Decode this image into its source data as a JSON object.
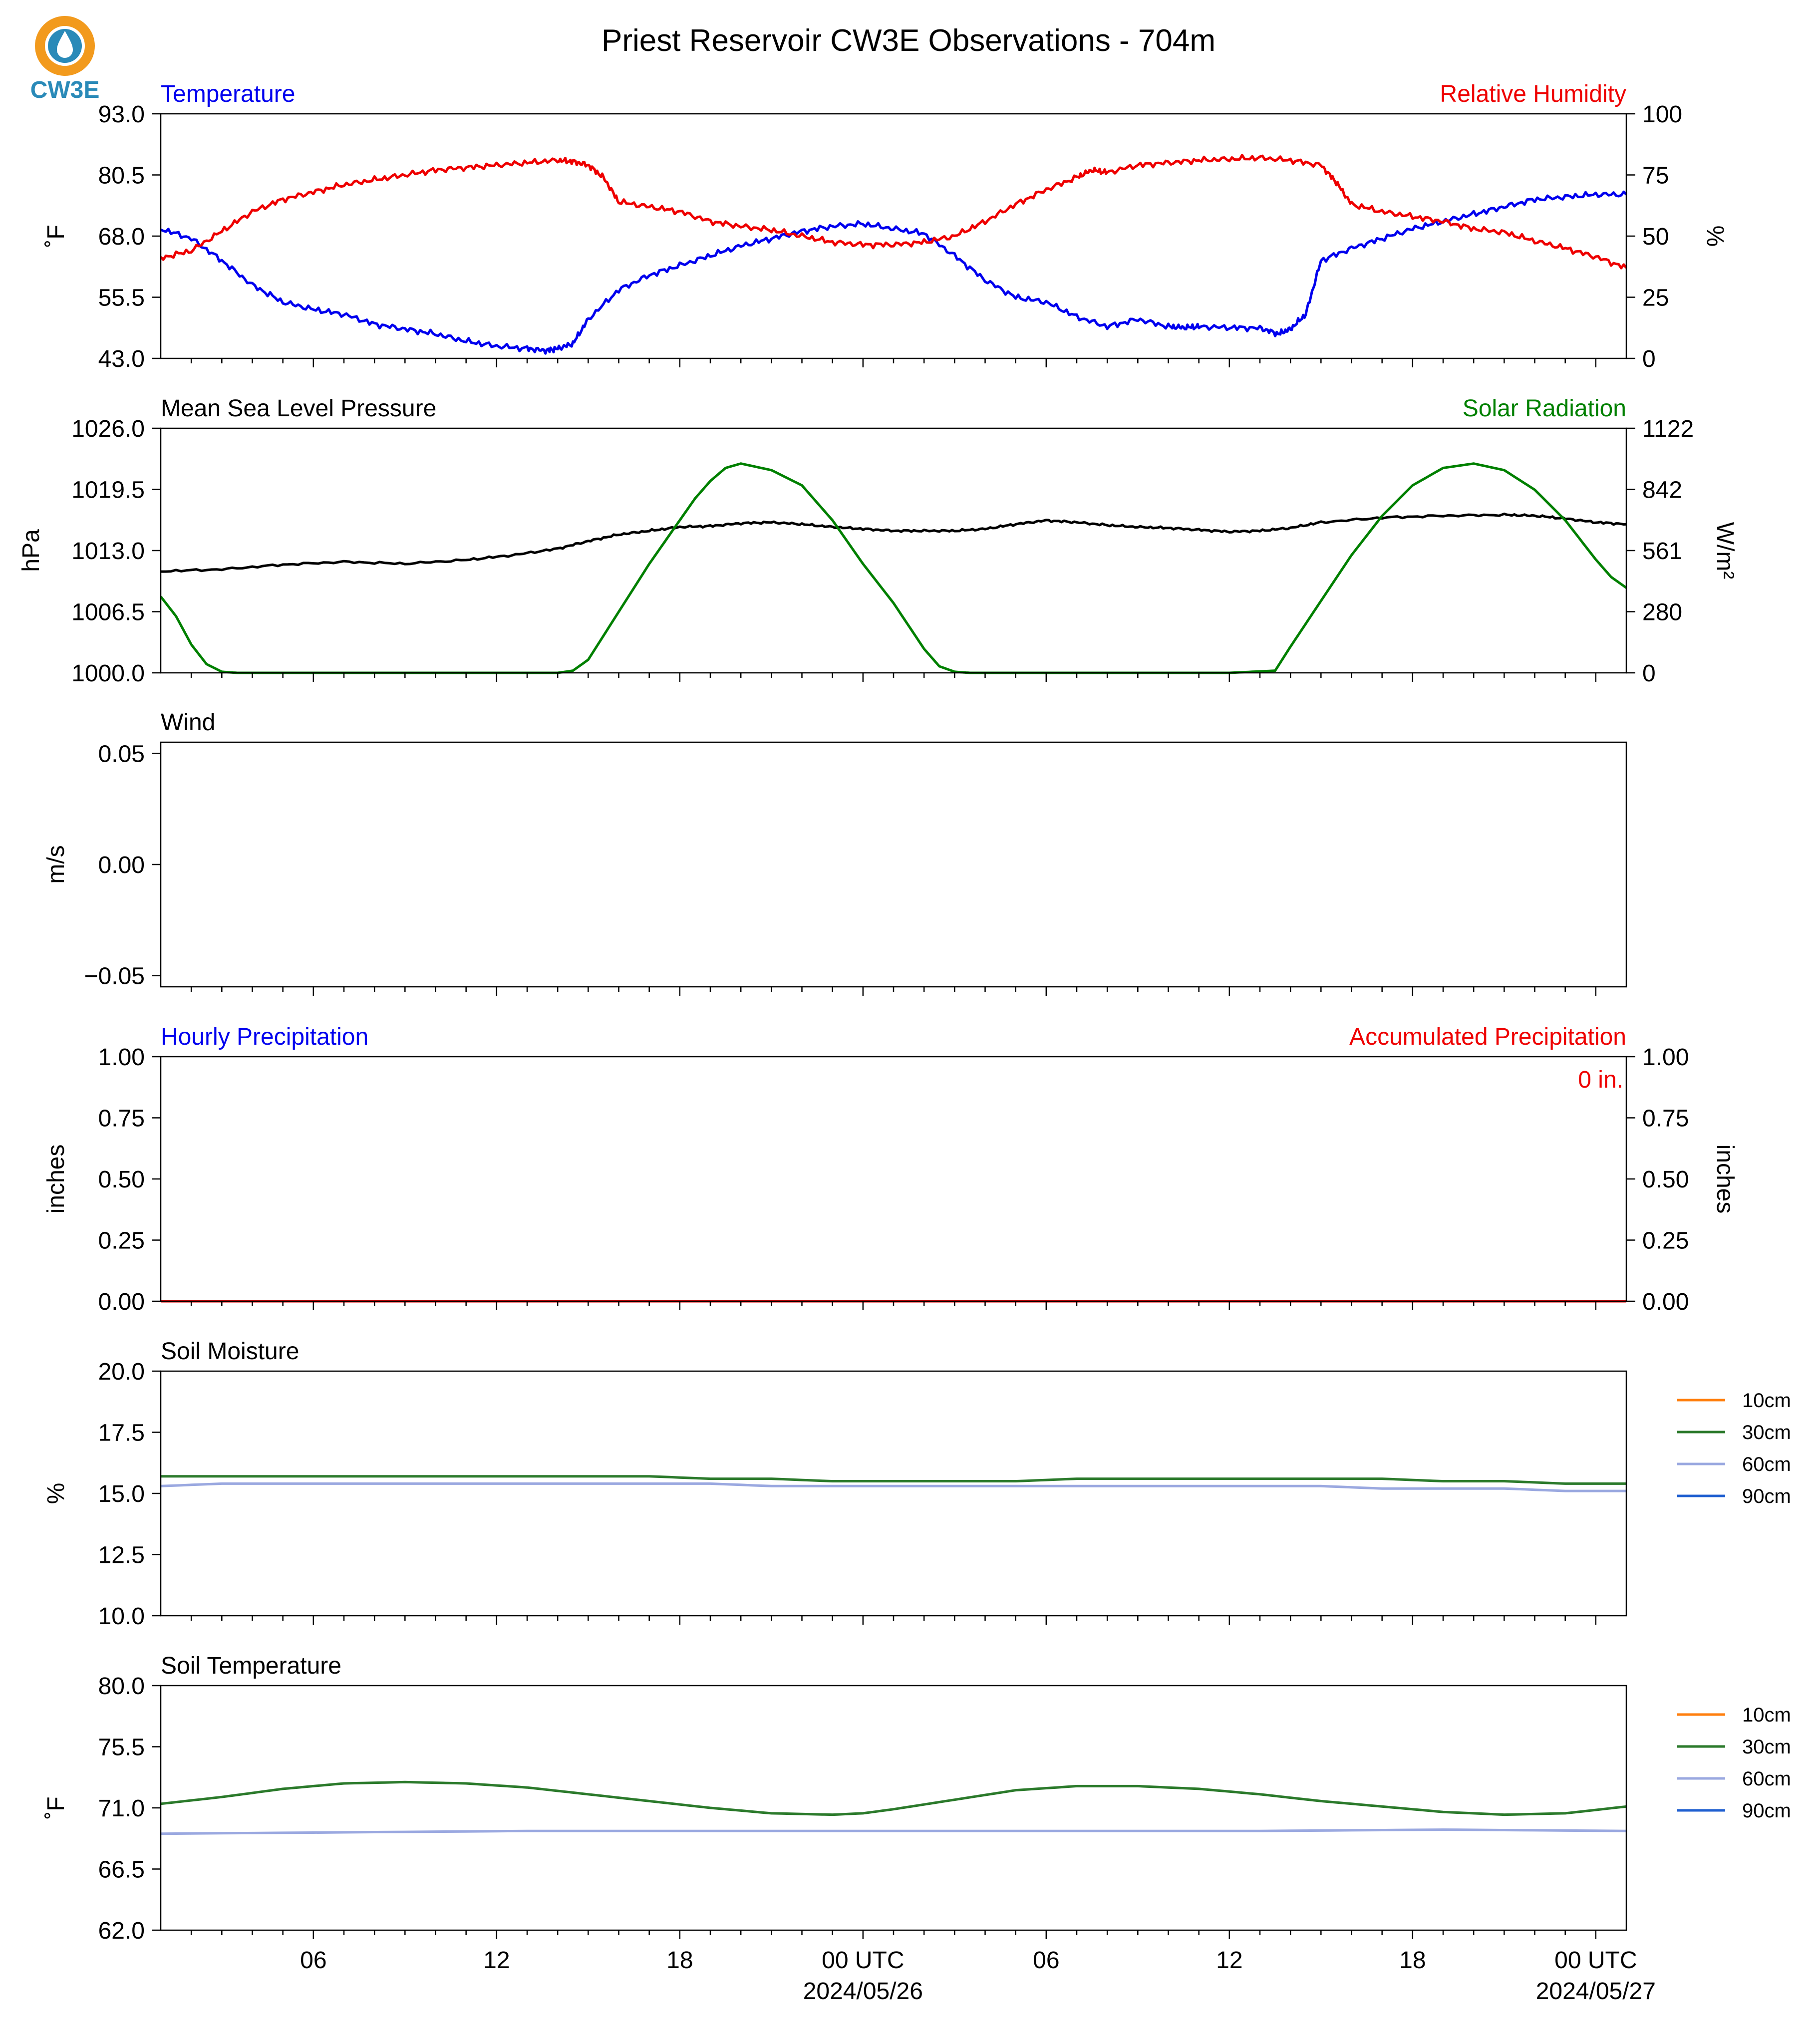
{
  "title": "Priest Reservoir CW3E Observations - 704m",
  "logo": {
    "text": "CW3E",
    "colors": {
      "ring": "#f29a1d",
      "drop": "#2a8ab8",
      "text": "#2a8ab8"
    }
  },
  "colors": {
    "blue": "#0000ee",
    "red": "#ee0000",
    "green": "#008000",
    "black": "#000000",
    "orange": "#ff7f0e",
    "soil30": "#2b7a2b",
    "soil60": "#9aa8e0",
    "soil90": "#1f5fd0"
  },
  "x_axis": {
    "start_hour": 0,
    "end_hour": 48,
    "tick_hours": [
      5,
      11,
      17,
      23,
      29,
      35,
      41,
      47
    ],
    "tick_labels": [
      "06",
      "12",
      "18",
      "00 UTC",
      "06",
      "12",
      "18",
      "00 UTC"
    ],
    "date_labels": [
      {
        "hour": 23,
        "text": "2024/05/26"
      },
      {
        "hour": 47,
        "text": "2024/05/27"
      }
    ]
  },
  "chart_data": [
    {
      "type": "line",
      "panel": "temperature_humidity",
      "title_left": "Temperature",
      "title_right": "Relative Humidity",
      "ylabel_left": "˚F",
      "ylabel_right": "%",
      "ylim_left": [
        43,
        93
      ],
      "yticks_left": [
        "93.0",
        "80.5",
        "68.0",
        "55.5",
        "43.0"
      ],
      "ylim_right": [
        0,
        100
      ],
      "yticks_right": [
        "100",
        "75",
        "50",
        "25",
        "0"
      ],
      "series": [
        {
          "name": "Temperature",
          "axis": "left",
          "color": "#0000ee",
          "x": [
            0,
            1,
            2,
            3,
            4,
            5,
            6,
            7,
            8,
            9,
            10,
            11,
            12,
            12.6,
            13,
            13.5,
            14,
            15,
            16,
            17,
            18,
            19,
            20,
            21,
            22,
            23,
            24,
            25,
            26,
            27,
            28,
            29,
            30,
            31,
            32,
            33,
            33.5,
            34,
            35,
            36,
            36.6,
            37,
            37.5,
            38,
            39,
            40,
            41,
            42,
            43,
            44,
            45,
            46,
            47,
            48
          ],
          "y": [
            69.5,
            67.5,
            63,
            58,
            54.5,
            53,
            52,
            50,
            49,
            48,
            46.5,
            45.5,
            45,
            44.6,
            45,
            46,
            51,
            57,
            60,
            62,
            64,
            66,
            67.5,
            69,
            70,
            70.5,
            69.5,
            68.5,
            64,
            59,
            55.5,
            54.5,
            51.5,
            49.5,
            51,
            49.5,
            49.3,
            49.5,
            49.3,
            49.2,
            48,
            49,
            52,
            63,
            65.5,
            67.5,
            69.5,
            71,
            72.5,
            74,
            75.5,
            76,
            76.5,
            76.5
          ]
        },
        {
          "name": "Relative Humidity",
          "axis": "right",
          "color": "#ee0000",
          "x": [
            0,
            1,
            2,
            3,
            4,
            5,
            6,
            7,
            8,
            9,
            10,
            11,
            12,
            13,
            13.5,
            14,
            14.5,
            15,
            16,
            17,
            18,
            19,
            20,
            21,
            22,
            23,
            24,
            25,
            26,
            27,
            28,
            29,
            30,
            30.5,
            31,
            32,
            33,
            34,
            35,
            36,
            37,
            38,
            38.5,
            39,
            40,
            41,
            42,
            43,
            44,
            45,
            46,
            47,
            48
          ],
          "y": [
            41,
            44,
            52,
            60,
            65,
            68,
            71,
            73,
            75,
            77,
            78,
            79,
            80,
            81,
            80.5,
            79,
            74,
            64,
            62,
            60,
            56,
            54,
            52.5,
            50,
            47.5,
            46.5,
            46.5,
            47.5,
            50,
            56,
            63,
            69,
            74,
            77,
            76,
            79,
            80,
            81,
            81.5,
            82,
            81,
            79,
            72,
            63,
            60,
            58,
            56,
            53,
            51.5,
            48,
            45,
            41.5,
            37
          ]
        }
      ]
    },
    {
      "type": "line",
      "panel": "pressure_solar",
      "title_left": "Mean Sea Level Pressure",
      "title_right": "Solar Radiation",
      "ylabel_left": "hPa",
      "ylabel_right": "W/m²",
      "ylim_left": [
        1000,
        1026
      ],
      "yticks_left": [
        "1026.0",
        "1019.5",
        "1013.0",
        "1006.5",
        "1000.0"
      ],
      "ylim_right": [
        0,
        1122
      ],
      "yticks_right": [
        "1122",
        "842",
        "561",
        "280",
        "0"
      ],
      "series": [
        {
          "name": "Mean Sea Level Pressure",
          "axis": "left",
          "color": "#000000",
          "x": [
            0,
            2,
            4,
            6,
            8,
            10,
            11.5,
            13,
            14,
            15,
            16,
            17,
            18,
            19,
            20,
            21,
            22,
            23,
            24,
            25,
            26,
            27,
            28,
            29,
            30,
            31,
            32,
            33,
            34,
            35,
            36,
            37,
            38,
            40,
            42,
            44,
            45,
            46,
            47,
            48
          ],
          "y": [
            1010.8,
            1011.0,
            1011.5,
            1011.8,
            1011.6,
            1012.0,
            1012.5,
            1013.2,
            1014.0,
            1014.7,
            1015.1,
            1015.5,
            1015.6,
            1015.9,
            1016.0,
            1015.8,
            1015.5,
            1015.3,
            1015.1,
            1015.1,
            1015.1,
            1015.3,
            1015.8,
            1016.2,
            1016.0,
            1015.7,
            1015.5,
            1015.4,
            1015.2,
            1015.0,
            1015.1,
            1015.4,
            1016.0,
            1016.5,
            1016.7,
            1016.8,
            1016.7,
            1016.4,
            1016.0,
            1015.8
          ]
        },
        {
          "name": "Solar Radiation",
          "axis": "right",
          "color": "#008000",
          "x": [
            0,
            0.5,
            1,
            1.5,
            2,
            2.5,
            3,
            6,
            9,
            12,
            13.0,
            13.5,
            14,
            15,
            16,
            17,
            17.5,
            18,
            18.5,
            19,
            20,
            21,
            22,
            23,
            24,
            25,
            25.5,
            26,
            26.5,
            27,
            30,
            33,
            35,
            36.5,
            37,
            38,
            39,
            40,
            41,
            42,
            43,
            44,
            45,
            46,
            47,
            47.5,
            48
          ],
          "y": [
            350,
            260,
            130,
            40,
            5,
            0,
            0,
            0,
            0,
            0,
            0,
            10,
            60,
            280,
            500,
            700,
            800,
            880,
            940,
            960,
            930,
            860,
            700,
            500,
            320,
            110,
            30,
            5,
            0,
            0,
            0,
            0,
            0,
            10,
            120,
            330,
            540,
            720,
            860,
            940,
            960,
            930,
            840,
            700,
            520,
            440,
            390
          ]
        }
      ]
    },
    {
      "type": "line",
      "panel": "wind",
      "title_left": "Wind",
      "ylabel_left": "m/s",
      "ylim_left": [
        -0.055,
        0.055
      ],
      "yticks_left": [
        "0.05",
        "0.00",
        "−0.05"
      ],
      "series": []
    },
    {
      "type": "line",
      "panel": "precipitation",
      "title_left": "Hourly Precipitation",
      "title_right": "Accumulated Precipitation",
      "ylabel_left": "inches",
      "ylabel_right": "inches",
      "ylim_left": [
        0,
        1
      ],
      "yticks_left": [
        "1.00",
        "0.75",
        "0.50",
        "0.25",
        "0.00"
      ],
      "ylim_right": [
        0,
        1
      ],
      "yticks_right": [
        "1.00",
        "0.75",
        "0.50",
        "0.25",
        "0.00"
      ],
      "annotation": "0 in.",
      "series": [
        {
          "name": "Hourly Precipitation",
          "axis": "left",
          "color": "#0000ee",
          "x": [
            0,
            48
          ],
          "y": [
            0,
            0
          ]
        },
        {
          "name": "Accumulated Precipitation",
          "axis": "right",
          "color": "#ee0000",
          "x": [
            0,
            48
          ],
          "y": [
            0,
            0
          ]
        }
      ]
    },
    {
      "type": "line",
      "panel": "soil_moisture",
      "title_left": "Soil Moisture",
      "ylabel_left": "%",
      "ylim_left": [
        10,
        20
      ],
      "yticks_left": [
        "20.0",
        "17.5",
        "15.0",
        "12.5",
        "10.0"
      ],
      "legend": [
        "10cm",
        "30cm",
        "60cm",
        "90cm"
      ],
      "series": [
        {
          "name": "30cm",
          "axis": "left",
          "color": "#2b7a2b",
          "x": [
            0,
            2,
            4,
            6,
            8,
            10,
            12,
            14,
            16,
            18,
            20,
            22,
            24,
            26,
            28,
            30,
            32,
            34,
            36,
            38,
            40,
            42,
            44,
            46,
            48
          ],
          "y": [
            15.7,
            15.7,
            15.7,
            15.7,
            15.7,
            15.7,
            15.7,
            15.7,
            15.7,
            15.6,
            15.6,
            15.5,
            15.5,
            15.5,
            15.5,
            15.6,
            15.6,
            15.6,
            15.6,
            15.6,
            15.6,
            15.5,
            15.5,
            15.4,
            15.4
          ]
        },
        {
          "name": "60cm",
          "axis": "left",
          "color": "#9aa8e0",
          "x": [
            0,
            2,
            4,
            6,
            8,
            10,
            12,
            14,
            16,
            18,
            20,
            22,
            24,
            26,
            28,
            30,
            32,
            34,
            36,
            38,
            40,
            42,
            44,
            46,
            48
          ],
          "y": [
            15.3,
            15.4,
            15.4,
            15.4,
            15.4,
            15.4,
            15.4,
            15.4,
            15.4,
            15.4,
            15.3,
            15.3,
            15.3,
            15.3,
            15.3,
            15.3,
            15.3,
            15.3,
            15.3,
            15.3,
            15.2,
            15.2,
            15.2,
            15.1,
            15.1
          ]
        }
      ]
    },
    {
      "type": "line",
      "panel": "soil_temperature",
      "title_left": "Soil Temperature",
      "ylabel_left": "˚F",
      "ylim_left": [
        62,
        80
      ],
      "yticks_left": [
        "80.0",
        "75.5",
        "71.0",
        "66.5",
        "62.0"
      ],
      "legend": [
        "10cm",
        "30cm",
        "60cm",
        "90cm"
      ],
      "series": [
        {
          "name": "30cm",
          "axis": "left",
          "color": "#2b7a2b",
          "x": [
            0,
            2,
            4,
            6,
            8,
            10,
            12,
            14,
            16,
            18,
            20,
            22,
            23,
            24,
            26,
            28,
            30,
            32,
            34,
            36,
            38,
            40,
            42,
            44,
            46,
            48
          ],
          "y": [
            71.3,
            71.8,
            72.4,
            72.8,
            72.9,
            72.8,
            72.5,
            72.0,
            71.5,
            71.0,
            70.6,
            70.5,
            70.6,
            70.9,
            71.6,
            72.3,
            72.6,
            72.6,
            72.4,
            72.0,
            71.5,
            71.1,
            70.7,
            70.5,
            70.6,
            71.1
          ]
        },
        {
          "name": "60cm",
          "axis": "left",
          "color": "#9aa8e0",
          "x": [
            0,
            6,
            12,
            18,
            24,
            30,
            36,
            42,
            48
          ],
          "y": [
            69.1,
            69.2,
            69.3,
            69.3,
            69.3,
            69.3,
            69.3,
            69.4,
            69.3
          ]
        }
      ]
    }
  ]
}
